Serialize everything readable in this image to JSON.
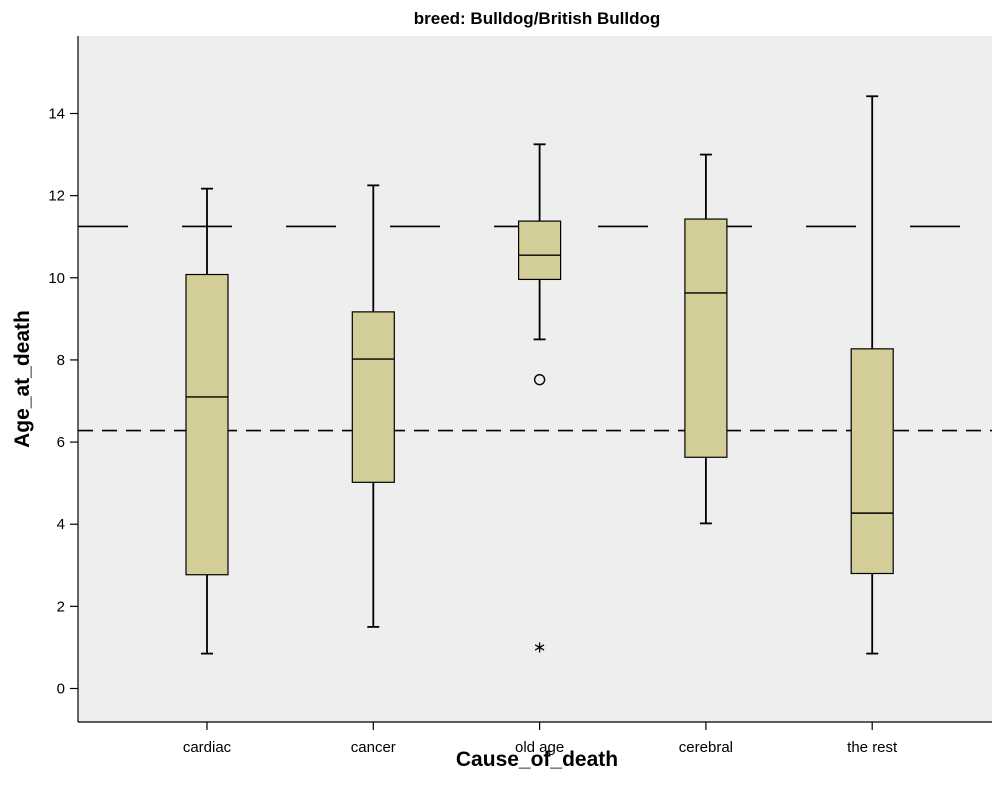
{
  "chart_data": {
    "type": "boxplot",
    "title": "breed: Bulldog/British Bulldog",
    "xlabel": "Cause_of_death",
    "ylabel": "Age_at_death",
    "ylim": [
      -0.8,
      15.6
    ],
    "yticks": [
      0,
      2,
      4,
      6,
      8,
      10,
      12,
      14
    ],
    "grid": false,
    "categories": [
      "cardiac",
      "cancer",
      "old age",
      "cerebral",
      "the rest"
    ],
    "boxes": [
      {
        "category": "cardiac",
        "whisker_low": 0.85,
        "q1": 2.77,
        "median": 7.1,
        "q3": 10.08,
        "whisker_high": 12.17,
        "outliers": [],
        "extremes": []
      },
      {
        "category": "cancer",
        "whisker_low": 1.5,
        "q1": 5.02,
        "median": 8.02,
        "q3": 9.17,
        "whisker_high": 12.25,
        "outliers": [],
        "extremes": []
      },
      {
        "category": "old age",
        "whisker_low": 8.5,
        "q1": 9.96,
        "median": 10.55,
        "q3": 11.38,
        "whisker_high": 13.25,
        "outliers": [
          7.52
        ],
        "extremes": [
          1.0
        ]
      },
      {
        "category": "cerebral",
        "whisker_low": 4.02,
        "q1": 5.63,
        "median": 9.63,
        "q3": 11.43,
        "whisker_high": 13.0,
        "outliers": [],
        "extremes": []
      },
      {
        "category": "the rest",
        "whisker_low": 0.85,
        "q1": 2.8,
        "median": 4.27,
        "q3": 8.27,
        "whisker_high": 14.42,
        "outliers": [],
        "extremes": []
      }
    ],
    "reference_lines": [
      {
        "y": 11.25,
        "style": "long-dash"
      },
      {
        "y": 6.28,
        "style": "short-dash"
      }
    ],
    "colors": {
      "box_fill": "#D3CE97",
      "plot_background": "#EEEEEE",
      "line": "#000000"
    }
  }
}
